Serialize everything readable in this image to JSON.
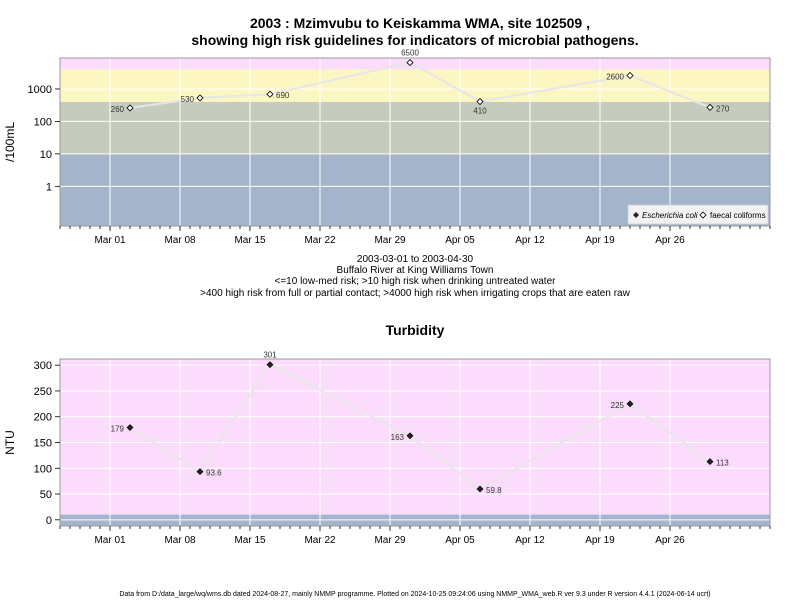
{
  "title_line1": "2003 : Mzimvubu to Keiskamma WMA, site 102509 ,",
  "title_line2": "showing high risk guidelines for indicators of microbial pathogens.",
  "caption": [
    "2003-03-01 to 2003-04-30",
    "Buffalo River at King Williams Town",
    "<=10 low-med risk; >10 high risk when drinking untreated water",
    ">400 high risk from full or partial contact; >4000 high risk when irrigating crops that are eaten raw"
  ],
  "footer": "Data from D:/data_large/wq/wms.db dated 2024-08-27, mainly NMMP programme. Plotted on 2024-10-25 09:24:06 using NMMP_WMA_web.R ver 9.3 under R version 4.4.1 (2024-06-14 ucrt)",
  "colors": {
    "band_blue": "#a4b4cb",
    "band_grey": "#c6ccbd",
    "band_yellow": "#fcf7c2",
    "band_pink": "#fcdcfc",
    "line": "#e6e6e6"
  },
  "chart_data": [
    {
      "type": "line",
      "title": "",
      "ylabel": "/100mL",
      "yscale": "log",
      "ytick_labels": [
        "1",
        "10",
        "100",
        "1000"
      ],
      "ytick_values": [
        1,
        10,
        100,
        1000
      ],
      "x_tick_labels": [
        "Mar 01",
        "Mar 08",
        "Mar 15",
        "Mar 22",
        "Mar 29",
        "Apr 05",
        "Apr 12",
        "Apr 19",
        "Apr 26"
      ],
      "x_tick_dates": [
        "2003-03-01",
        "2003-03-08",
        "2003-03-15",
        "2003-03-22",
        "2003-03-29",
        "2003-04-05",
        "2003-04-12",
        "2003-04-19",
        "2003-04-26"
      ],
      "xlim": [
        "2003-02-24",
        "2003-05-06"
      ],
      "ylim": [
        0.06,
        9000
      ],
      "risk_thresholds": [
        10,
        400,
        4000
      ],
      "grid": true,
      "legend_position": "bottom-right",
      "legend": [
        "Escherichia coli",
        "faecal coliforms"
      ],
      "series": [
        {
          "name": "faecal coliforms",
          "points": [
            {
              "x": "2003-03-03",
              "y": 260,
              "label": "260"
            },
            {
              "x": "2003-03-10",
              "y": 530,
              "label": "530"
            },
            {
              "x": "2003-03-17",
              "y": 690,
              "label": "690"
            },
            {
              "x": "2003-03-31",
              "y": 6500,
              "label": "6500"
            },
            {
              "x": "2003-04-07",
              "y": 410,
              "label": "410"
            },
            {
              "x": "2003-04-22",
              "y": 2600,
              "label": "2600"
            },
            {
              "x": "2003-04-30",
              "y": 270,
              "label": "270"
            }
          ]
        }
      ]
    },
    {
      "type": "line",
      "title": "Turbidity",
      "ylabel": "NTU",
      "yscale": "linear",
      "ytick_labels": [
        "0",
        "50",
        "100",
        "150",
        "200",
        "250",
        "300"
      ],
      "ytick_values": [
        0,
        50,
        100,
        150,
        200,
        250,
        300
      ],
      "x_tick_labels": [
        "Mar 01",
        "Mar 08",
        "Mar 15",
        "Mar 22",
        "Mar 29",
        "Apr 05",
        "Apr 12",
        "Apr 19",
        "Apr 26"
      ],
      "x_tick_dates": [
        "2003-03-01",
        "2003-03-08",
        "2003-03-15",
        "2003-03-22",
        "2003-03-29",
        "2003-04-05",
        "2003-04-12",
        "2003-04-19",
        "2003-04-26"
      ],
      "xlim": [
        "2003-02-24",
        "2003-05-06"
      ],
      "ylim": [
        -12,
        312
      ],
      "grid": true,
      "series": [
        {
          "name": "",
          "points": [
            {
              "x": "2003-03-03",
              "y": 179,
              "label": "179"
            },
            {
              "x": "2003-03-10",
              "y": 93.6,
              "label": "93.6"
            },
            {
              "x": "2003-03-17",
              "y": 301,
              "label": "301"
            },
            {
              "x": "2003-03-31",
              "y": 163,
              "label": "163"
            },
            {
              "x": "2003-04-07",
              "y": 59.8,
              "label": "59.8"
            },
            {
              "x": "2003-04-22",
              "y": 225,
              "label": "225"
            },
            {
              "x": "2003-04-30",
              "y": 113,
              "label": "113"
            }
          ]
        }
      ]
    }
  ]
}
